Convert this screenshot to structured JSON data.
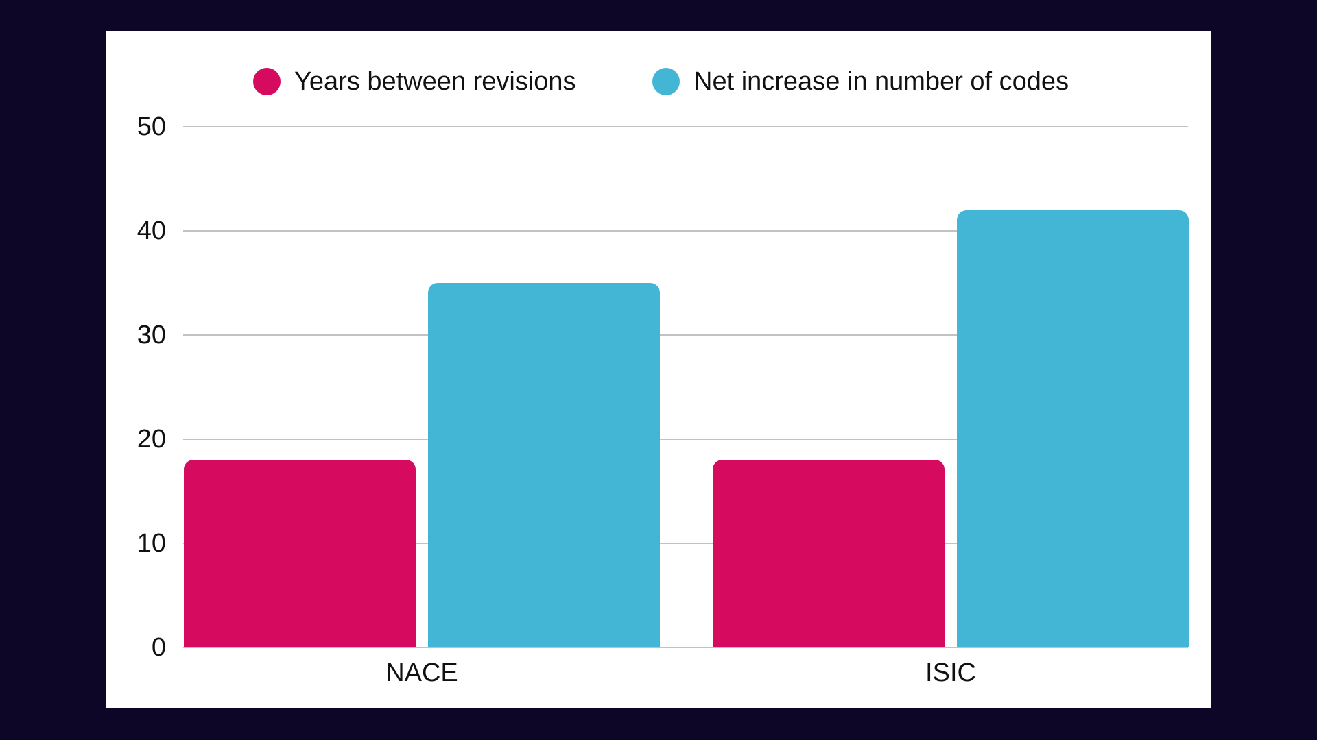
{
  "colors": {
    "background": "#0D0627",
    "card": "#FFFFFF",
    "pink": "#D60B5F",
    "blue": "#44B6D5",
    "gridline": "#C2C2C2",
    "text": "#111111"
  },
  "legend": [
    {
      "label": "Years between revisions",
      "color": "#D60B5F"
    },
    {
      "label": "Net increase in number of codes",
      "color": "#44B6D5"
    }
  ],
  "chart_data": {
    "type": "bar",
    "title": "",
    "xlabel": "",
    "ylabel": "",
    "categories": [
      "NACE",
      "ISIC"
    ],
    "series": [
      {
        "name": "Years between revisions",
        "color": "#D60B5F",
        "values": [
          18,
          18
        ]
      },
      {
        "name": "Net increase in number of codes",
        "color": "#44B6D5",
        "values": [
          35,
          42
        ]
      }
    ],
    "ylim": [
      0,
      50
    ],
    "yticks": [
      0,
      10,
      20,
      30,
      40,
      50
    ],
    "grid": true,
    "legend_position": "top"
  }
}
